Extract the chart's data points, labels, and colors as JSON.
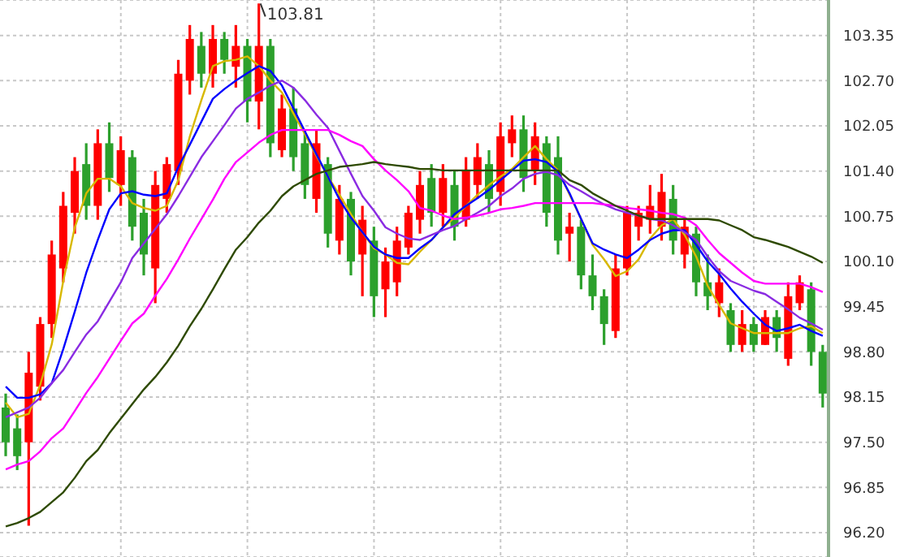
{
  "chart_data": {
    "type": "candlestick",
    "categories": [
      null,
      null,
      null,
      null,
      null,
      null,
      null,
      null,
      null,
      null,
      null,
      null,
      null,
      null,
      null,
      null,
      null,
      null,
      null,
      null,
      null,
      null,
      null,
      null,
      null,
      null,
      null,
      null,
      null,
      null,
      null,
      null,
      null,
      null,
      null,
      null,
      null,
      null,
      null,
      null,
      null,
      null,
      null,
      null,
      null,
      null,
      null,
      null,
      null,
      null,
      null,
      null,
      null,
      null,
      null,
      null,
      null,
      null,
      null,
      null,
      null,
      null,
      null,
      null,
      null,
      null,
      null,
      null,
      null,
      null,
      null,
      null
    ],
    "ohlc": [
      [
        98.0,
        98.2,
        97.3,
        97.5
      ],
      [
        97.7,
        97.9,
        97.1,
        97.3
      ],
      [
        97.5,
        98.8,
        96.3,
        98.5
      ],
      [
        98.3,
        99.3,
        98.1,
        99.2
      ],
      [
        99.2,
        100.4,
        99.0,
        100.2
      ],
      [
        100.0,
        101.1,
        99.8,
        100.9
      ],
      [
        100.8,
        101.6,
        100.5,
        101.4
      ],
      [
        101.5,
        101.8,
        100.7,
        100.9
      ],
      [
        100.9,
        102.0,
        100.7,
        101.8
      ],
      [
        101.8,
        102.1,
        101.1,
        101.3
      ],
      [
        101.2,
        101.9,
        100.9,
        101.7
      ],
      [
        101.6,
        101.7,
        100.4,
        100.6
      ],
      [
        100.8,
        101.0,
        99.9,
        100.2
      ],
      [
        100.0,
        101.4,
        99.5,
        101.2
      ],
      [
        101.0,
        101.6,
        100.8,
        101.5
      ],
      [
        101.4,
        103.0,
        101.2,
        102.8
      ],
      [
        102.7,
        103.5,
        102.5,
        103.3
      ],
      [
        103.2,
        103.4,
        102.6,
        102.8
      ],
      [
        102.8,
        103.5,
        102.6,
        103.3
      ],
      [
        103.3,
        103.4,
        102.8,
        103.0
      ],
      [
        102.9,
        103.5,
        102.6,
        103.2
      ],
      [
        103.2,
        103.3,
        102.1,
        102.4
      ],
      [
        102.4,
        103.81,
        102.0,
        103.2
      ],
      [
        103.2,
        103.3,
        101.6,
        101.8
      ],
      [
        101.7,
        102.5,
        101.6,
        102.3
      ],
      [
        102.3,
        102.6,
        101.4,
        101.6
      ],
      [
        101.8,
        102.0,
        101.0,
        101.2
      ],
      [
        101.0,
        102.0,
        100.8,
        101.8
      ],
      [
        101.5,
        101.6,
        100.3,
        100.5
      ],
      [
        100.4,
        101.2,
        100.2,
        101.0
      ],
      [
        101.0,
        101.1,
        99.9,
        100.1
      ],
      [
        100.2,
        100.9,
        99.6,
        100.7
      ],
      [
        100.4,
        100.6,
        99.3,
        99.6
      ],
      [
        99.7,
        100.3,
        99.3,
        100.1
      ],
      [
        99.8,
        100.6,
        99.6,
        100.4
      ],
      [
        100.3,
        100.9,
        100.2,
        100.8
      ],
      [
        100.7,
        101.4,
        100.5,
        101.2
      ],
      [
        101.3,
        101.5,
        100.6,
        100.8
      ],
      [
        100.8,
        101.5,
        100.6,
        101.3
      ],
      [
        101.2,
        101.4,
        100.4,
        100.6
      ],
      [
        100.7,
        101.6,
        100.6,
        101.4
      ],
      [
        101.2,
        101.8,
        101.0,
        101.6
      ],
      [
        101.5,
        101.7,
        100.8,
        101.0
      ],
      [
        101.1,
        102.1,
        100.9,
        101.9
      ],
      [
        101.8,
        102.2,
        101.6,
        102.0
      ],
      [
        102.0,
        102.2,
        101.1,
        101.3
      ],
      [
        101.4,
        102.1,
        101.2,
        101.9
      ],
      [
        101.8,
        101.9,
        100.6,
        100.8
      ],
      [
        101.6,
        101.9,
        100.2,
        100.4
      ],
      [
        100.5,
        100.8,
        100.1,
        100.6
      ],
      [
        100.6,
        100.7,
        99.7,
        99.9
      ],
      [
        99.9,
        100.2,
        99.4,
        99.6
      ],
      [
        99.6,
        99.7,
        98.9,
        99.2
      ],
      [
        99.1,
        100.2,
        99.0,
        100.0
      ],
      [
        100.0,
        100.9,
        99.9,
        100.8
      ],
      [
        100.6,
        100.9,
        100.4,
        100.8
      ],
      [
        100.7,
        101.2,
        100.5,
        100.9
      ],
      [
        100.6,
        101.36,
        100.4,
        101.1
      ],
      [
        101.0,
        101.2,
        100.2,
        100.4
      ],
      [
        100.2,
        100.7,
        100.0,
        100.6
      ],
      [
        100.5,
        100.6,
        99.6,
        99.8
      ],
      [
        99.8,
        100.2,
        99.4,
        99.6
      ],
      [
        99.5,
        100.0,
        99.3,
        99.8
      ],
      [
        99.4,
        99.5,
        98.8,
        98.9
      ],
      [
        98.9,
        99.4,
        98.8,
        99.2
      ],
      [
        99.2,
        99.3,
        98.8,
        98.9
      ],
      [
        98.9,
        99.4,
        98.9,
        99.3
      ],
      [
        99.3,
        99.4,
        98.8,
        99.0
      ],
      [
        98.7,
        99.8,
        98.6,
        99.6
      ],
      [
        99.5,
        99.9,
        99.4,
        99.8
      ],
      [
        99.7,
        99.8,
        98.6,
        98.8
      ],
      [
        98.8,
        98.9,
        98.0,
        98.2
      ]
    ],
    "series": [
      {
        "type": "line",
        "color": "#d8b800",
        "values": [
          98.07,
          97.86,
          97.91,
          98.33,
          98.91,
          99.82,
          100.59,
          101.08,
          101.29,
          101.29,
          101.18,
          100.94,
          100.87,
          100.83,
          100.9,
          101.27,
          101.9,
          102.42,
          102.91,
          102.98,
          103.0,
          103.05,
          102.91,
          102.7,
          102.53,
          102.23,
          101.93,
          101.62,
          101.32,
          101.06,
          100.78,
          100.52,
          100.29,
          100.2,
          100.08,
          100.06,
          100.24,
          100.41,
          100.59,
          100.73,
          100.9,
          101.06,
          101.2,
          101.32,
          101.43,
          101.6,
          101.76,
          101.57,
          101.41,
          101.06,
          100.71,
          100.34,
          100.13,
          99.89,
          99.96,
          100.13,
          100.43,
          100.62,
          100.71,
          100.48,
          100.17,
          99.75,
          99.47,
          99.21,
          99.14,
          99.07,
          99.07,
          99.07,
          99.07,
          99.14,
          99.17,
          99.07
        ]
      },
      {
        "type": "line",
        "color": "#0000ff",
        "values": [
          98.3,
          98.14,
          98.14,
          98.19,
          98.35,
          98.84,
          99.38,
          99.94,
          100.41,
          100.85,
          101.08,
          101.11,
          101.06,
          101.04,
          101.08,
          101.46,
          101.78,
          102.11,
          102.44,
          102.58,
          102.7,
          102.81,
          102.91,
          102.84,
          102.63,
          102.3,
          101.97,
          101.64,
          101.32,
          100.99,
          100.73,
          100.52,
          100.31,
          100.2,
          100.15,
          100.15,
          100.29,
          100.41,
          100.59,
          100.78,
          100.9,
          101.01,
          101.13,
          101.27,
          101.41,
          101.55,
          101.57,
          101.53,
          101.39,
          101.08,
          100.71,
          100.36,
          100.27,
          100.2,
          100.15,
          100.27,
          100.41,
          100.5,
          100.55,
          100.55,
          100.34,
          100.1,
          99.92,
          99.71,
          99.52,
          99.35,
          99.19,
          99.1,
          99.14,
          99.19,
          99.1,
          99.03
        ]
      },
      {
        "type": "line",
        "color": "#8a2be2",
        "values": [
          97.86,
          97.93,
          98.0,
          98.14,
          98.35,
          98.54,
          98.8,
          99.05,
          99.24,
          99.52,
          99.8,
          100.15,
          100.36,
          100.57,
          100.78,
          101.04,
          101.32,
          101.6,
          101.83,
          102.06,
          102.3,
          102.44,
          102.53,
          102.63,
          102.7,
          102.6,
          102.42,
          102.21,
          102.02,
          101.69,
          101.36,
          101.04,
          100.83,
          100.59,
          100.5,
          100.43,
          100.41,
          100.48,
          100.55,
          100.61,
          100.71,
          100.8,
          100.9,
          101.04,
          101.15,
          101.29,
          101.36,
          101.39,
          101.34,
          101.2,
          101.11,
          101.01,
          100.92,
          100.85,
          100.8,
          100.76,
          100.71,
          100.69,
          100.62,
          100.52,
          100.41,
          100.17,
          99.96,
          99.82,
          99.75,
          99.68,
          99.63,
          99.52,
          99.41,
          99.29,
          99.21,
          99.12
        ]
      },
      {
        "type": "line",
        "color": "#ff00ff",
        "values": [
          97.11,
          97.18,
          97.23,
          97.37,
          97.56,
          97.7,
          97.95,
          98.21,
          98.44,
          98.7,
          98.96,
          99.21,
          99.35,
          99.61,
          99.85,
          100.13,
          100.43,
          100.71,
          100.99,
          101.29,
          101.53,
          101.67,
          101.81,
          101.92,
          101.99,
          101.99,
          101.99,
          101.99,
          101.99,
          101.92,
          101.83,
          101.76,
          101.57,
          101.41,
          101.27,
          101.11,
          100.87,
          100.83,
          100.76,
          100.71,
          100.73,
          100.76,
          100.8,
          100.85,
          100.87,
          100.9,
          100.94,
          100.94,
          100.94,
          100.94,
          100.94,
          100.94,
          100.92,
          100.9,
          100.87,
          100.85,
          100.83,
          100.8,
          100.78,
          100.73,
          100.62,
          100.41,
          100.22,
          100.08,
          99.94,
          99.82,
          99.78,
          99.78,
          99.78,
          99.78,
          99.73,
          99.66
        ]
      },
      {
        "type": "line",
        "color": "#2e4a00",
        "values": [
          96.29,
          96.34,
          96.41,
          96.5,
          96.64,
          96.78,
          96.99,
          97.23,
          97.39,
          97.63,
          97.84,
          98.05,
          98.26,
          98.44,
          98.65,
          98.89,
          99.17,
          99.42,
          99.7,
          99.99,
          100.27,
          100.45,
          100.66,
          100.83,
          101.04,
          101.18,
          101.27,
          101.36,
          101.41,
          101.46,
          101.48,
          101.5,
          101.53,
          101.5,
          101.48,
          101.46,
          101.43,
          101.43,
          101.41,
          101.41,
          101.41,
          101.41,
          101.41,
          101.41,
          101.41,
          101.41,
          101.41,
          101.41,
          101.41,
          101.27,
          101.2,
          101.08,
          100.99,
          100.9,
          100.83,
          100.76,
          100.71,
          100.71,
          100.71,
          100.71,
          100.71,
          100.71,
          100.69,
          100.62,
          100.55,
          100.45,
          100.41,
          100.36,
          100.31,
          100.24,
          100.17,
          100.08
        ]
      }
    ],
    "annotations": [
      "103.81"
    ],
    "ylim": [
      95.85,
      103.86
    ],
    "yticks": [
      {
        "value": 96.2,
        "label": "96.20"
      },
      {
        "value": 96.85,
        "label": "96.85"
      },
      {
        "value": 97.5,
        "label": "97.50"
      },
      {
        "value": 98.15,
        "label": "98.15"
      },
      {
        "value": 98.8,
        "label": "98.80"
      },
      {
        "value": 99.45,
        "label": "99.45"
      },
      {
        "value": 100.1,
        "label": "100.10"
      },
      {
        "value": 100.75,
        "label": "100.75"
      },
      {
        "value": 101.4,
        "label": "101.40"
      },
      {
        "value": 102.05,
        "label": "102.05"
      },
      {
        "value": 102.7,
        "label": "102.70"
      },
      {
        "value": 103.35,
        "label": "103.35"
      }
    ],
    "grid": true,
    "tick_labels": "y"
  }
}
